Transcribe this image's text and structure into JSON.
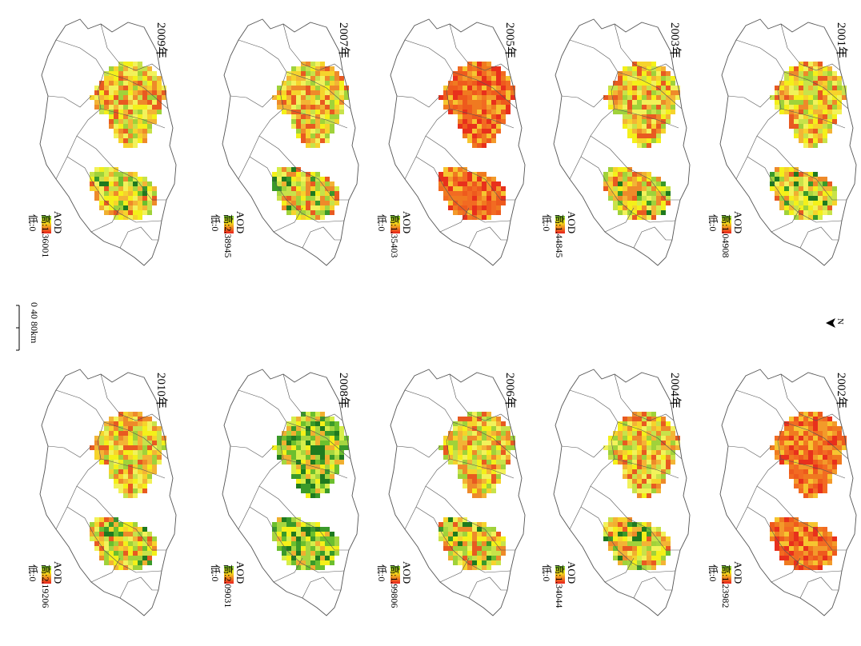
{
  "figure": {
    "legend_title": "AOD",
    "low_label": "低:0",
    "panels": [
      {
        "year": "2001年",
        "high": "高:1.04908",
        "palette": "mixed"
      },
      {
        "year": "2003年",
        "high": "高:1.44845",
        "palette": "mixed"
      },
      {
        "year": "2005年",
        "high": "高:1.35403",
        "palette": "hot"
      },
      {
        "year": "2007年",
        "high": "高:2.38945",
        "palette": "mixed"
      },
      {
        "year": "2009年",
        "high": "高:1.36001",
        "palette": "mixed"
      },
      {
        "year": "2002年",
        "high": "高:1.23982",
        "palette": "hot"
      },
      {
        "year": "2004年",
        "high": "高:1.34044",
        "palette": "mixed"
      },
      {
        "year": "2006年",
        "high": "高:1.99806",
        "palette": "mixed"
      },
      {
        "year": "2008年",
        "high": "高:2.09031",
        "palette": "green"
      },
      {
        "year": "2010年",
        "high": "高:2.19206",
        "palette": "mixed"
      }
    ],
    "north_label": "N",
    "scale": {
      "ticks": "0  40  80km"
    },
    "colors": {
      "low": "#6cbf2e",
      "mid": "#f4f01a",
      "high": "#e8201c",
      "outline": "#555555"
    }
  }
}
